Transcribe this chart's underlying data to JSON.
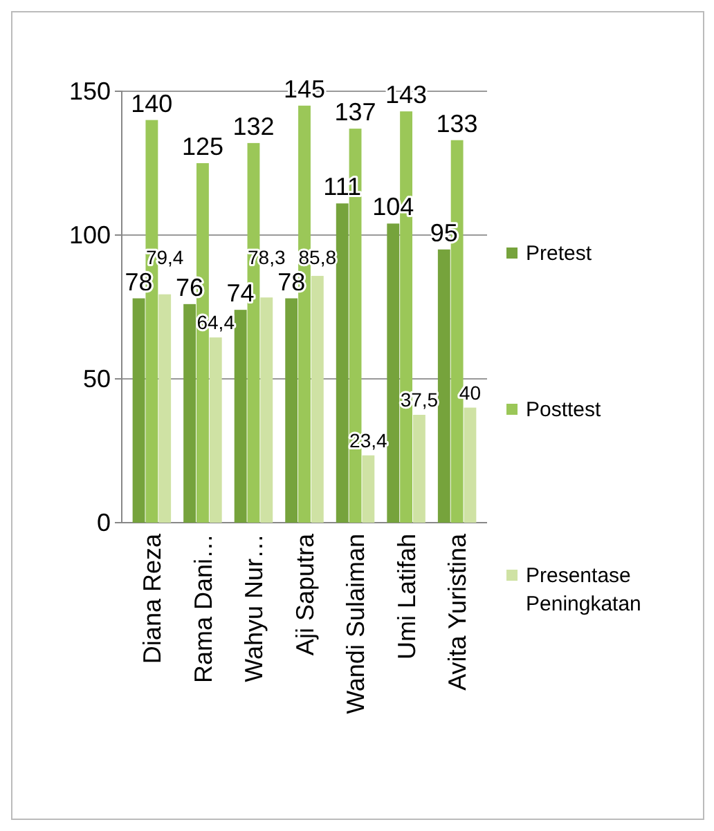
{
  "chart_data": {
    "type": "bar",
    "categories": [
      "Diana Reza",
      "Rama Dani…",
      "Wahyu Nur…",
      "Aji Saputra",
      "Wandi Sulaiman",
      "Umi Latifah",
      "Avita Yuristina"
    ],
    "series": [
      {
        "name": "Pretest",
        "color": "#76a33c",
        "values": [
          78,
          76,
          74,
          78,
          111,
          104,
          95
        ],
        "value_labels": [
          "78",
          "76",
          "74",
          "78",
          "111",
          "104",
          "95"
        ]
      },
      {
        "name": "Posttest",
        "color": "#9bc758",
        "values": [
          140,
          125,
          132,
          145,
          137,
          143,
          133
        ],
        "value_labels": [
          "140",
          "125",
          "132",
          "145",
          "137",
          "143",
          "133"
        ]
      },
      {
        "name": "Presentase Peningkatan",
        "color": "#cfe2a4",
        "values": [
          79.4,
          64.4,
          78.3,
          85.8,
          23.4,
          37.5,
          40
        ],
        "value_labels": [
          "79,4",
          "64,4",
          "78,3",
          "85,8",
          "23,4",
          "37,5",
          "40"
        ]
      }
    ],
    "ylim": [
      0,
      150
    ],
    "yticks": [
      0,
      50,
      100,
      150
    ],
    "grid": "y",
    "legend": "right"
  }
}
